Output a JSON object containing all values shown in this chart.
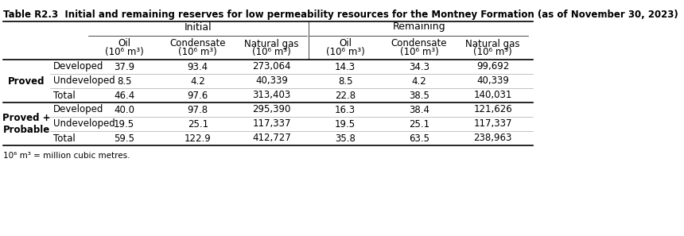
{
  "title": "Table R2.3  Initial and remaining reserves for low permeability resources for the Montney Formation (as of November 30, 2023)",
  "group_headers": [
    "Initial",
    "Remaining"
  ],
  "col_headers_line1": [
    "Oil",
    "Condensate",
    "Natural gas",
    "Oil",
    "Condensate",
    "Natural gas"
  ],
  "col_headers_line2": [
    "(10⁶ m³)",
    "(10⁶ m³)",
    "(10⁶ m³)",
    "(10⁶ m³)",
    "(10⁶ m³)",
    "(10⁶ m³)"
  ],
  "row_groups": [
    {
      "label": "Proved",
      "rows": [
        {
          "sublabel": "Developed",
          "values": [
            "37.9",
            "93.4",
            "273,064",
            "14.3",
            "34.3",
            "99,692"
          ]
        },
        {
          "sublabel": "Undeveloped",
          "values": [
            "8.5",
            "4.2",
            "40,339",
            "8.5",
            "4.2",
            "40,339"
          ]
        },
        {
          "sublabel": "Total",
          "values": [
            "46.4",
            "97.6",
            "313,403",
            "22.8",
            "38.5",
            "140,031"
          ]
        }
      ]
    },
    {
      "label": "Proved +\nProbable",
      "rows": [
        {
          "sublabel": "Developed",
          "values": [
            "40.0",
            "97.8",
            "295,390",
            "16.3",
            "38.4",
            "121,626"
          ]
        },
        {
          "sublabel": "Undeveloped",
          "values": [
            "19.5",
            "25.1",
            "117,337",
            "19.5",
            "25.1",
            "117,337"
          ]
        },
        {
          "sublabel": "Total",
          "values": [
            "59.5",
            "122.9",
            "412,727",
            "35.8",
            "63.5",
            "238,963"
          ]
        }
      ]
    }
  ],
  "footnote": "10⁶ m³ = million cubic metres.",
  "background_color": "#ffffff",
  "header_bg": "#ffffff",
  "line_color": "#000000",
  "text_color": "#000000",
  "font_size": 8.5,
  "title_font_size": 8.5
}
